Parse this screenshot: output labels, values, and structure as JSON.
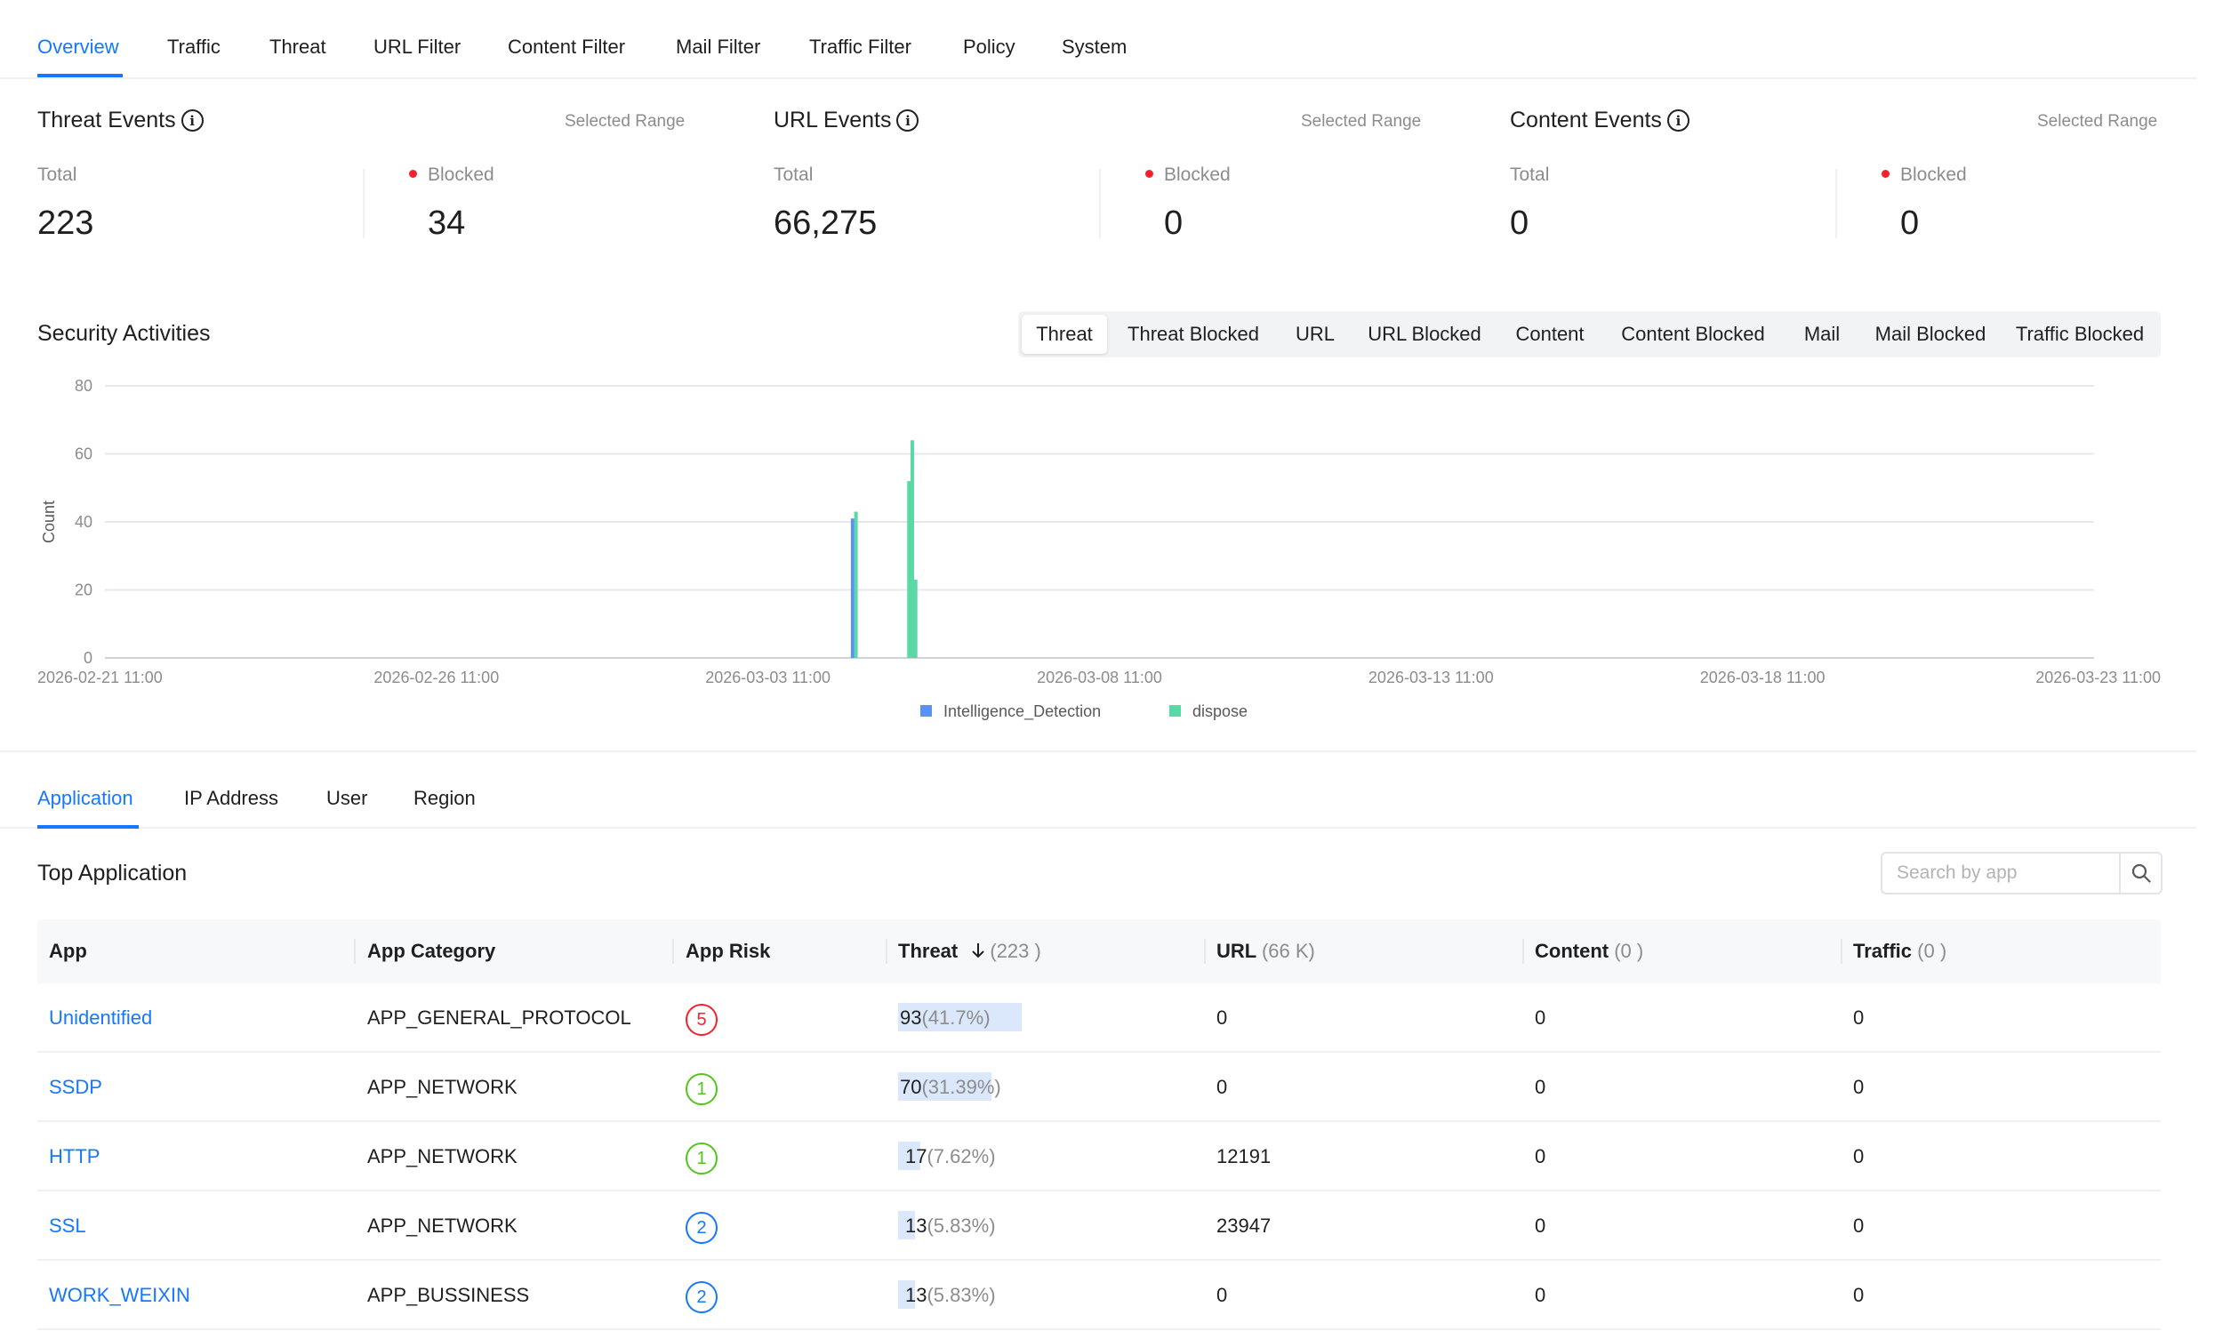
{
  "top_tabs": [
    "Overview",
    "Traffic",
    "Threat",
    "URL Filter",
    "Content Filter",
    "Mail Filter",
    "Traffic Filter",
    "Policy",
    "System"
  ],
  "cards": [
    {
      "title": "Threat Events",
      "range": "Selected Range",
      "total_label": "Total",
      "total": "223",
      "blocked_label": "Blocked",
      "blocked": "34"
    },
    {
      "title": "URL Events",
      "range": "Selected Range",
      "total_label": "Total",
      "total": "66,275",
      "blocked_label": "Blocked",
      "blocked": "0"
    },
    {
      "title": "Content Events",
      "range": "Selected Range",
      "total_label": "Total",
      "total": "0",
      "blocked_label": "Blocked",
      "blocked": "0"
    }
  ],
  "security": {
    "title": "Security Activities",
    "segments": [
      "Threat",
      "Threat Blocked",
      "URL",
      "URL Blocked",
      "Content",
      "Content Blocked",
      "Mail",
      "Mail Blocked",
      "Traffic Blocked"
    ],
    "active_segment": "Threat"
  },
  "chart_data": {
    "type": "bar",
    "ylabel": "Count",
    "ylim": [
      0,
      80
    ],
    "yticks": [
      0,
      20,
      40,
      60,
      80
    ],
    "x_ticks": [
      "2026-02-21 11:00",
      "2026-02-26 11:00",
      "2026-03-03 11:00",
      "2026-03-08 11:00",
      "2026-03-13 11:00",
      "2026-03-18 11:00",
      "2026-03-23 11:00"
    ],
    "x_range_days": [
      0,
      30
    ],
    "grid": true,
    "legend_position": "bottom",
    "series": [
      {
        "name": "Intelligence_Detection",
        "color": "#5b8ff9",
        "points": [
          {
            "day": 11.25,
            "value": 41
          }
        ]
      },
      {
        "name": "dispose",
        "color": "#5ad8a6",
        "points": [
          {
            "day": 11.3,
            "value": 43
          },
          {
            "day": 12.1,
            "value": 52
          },
          {
            "day": 12.15,
            "value": 64
          },
          {
            "day": 12.2,
            "value": 23
          }
        ]
      }
    ]
  },
  "sub_tabs": [
    "Application",
    "IP Address",
    "User",
    "Region"
  ],
  "top_app": {
    "title": "Top Application",
    "search_placeholder": "Search by app",
    "columns": {
      "app": "App",
      "category": "App Category",
      "risk": "App Risk",
      "threat": "Threat",
      "threat_total": "(223 )",
      "url": "URL",
      "url_total": "(66 K)",
      "content": "Content",
      "content_total": "(0 )",
      "traffic": "Traffic",
      "traffic_total": "(0 )"
    },
    "rows": [
      {
        "app": "Unidentified",
        "category": "APP_GENERAL_PROTOCOL",
        "risk": "5",
        "risk_color": "#f5222d",
        "threat": "93",
        "threat_pct": "(41.7%)",
        "threat_share": 0.417,
        "url": "0",
        "content": "0",
        "traffic": "0"
      },
      {
        "app": "SSDP",
        "category": "APP_NETWORK",
        "risk": "1",
        "risk_color": "#52c41a",
        "threat": "70",
        "threat_pct": "(31.39%)",
        "threat_share": 0.3139,
        "url": "0",
        "content": "0",
        "traffic": "0"
      },
      {
        "app": "HTTP",
        "category": "APP_NETWORK",
        "risk": "1",
        "risk_color": "#52c41a",
        "threat": "17",
        "threat_pct": "(7.62%)",
        "threat_share": 0.0762,
        "url": "12191",
        "content": "0",
        "traffic": "0"
      },
      {
        "app": "SSL",
        "category": "APP_NETWORK",
        "risk": "2",
        "risk_color": "#1677ff",
        "threat": "13",
        "threat_pct": "(5.83%)",
        "threat_share": 0.0583,
        "url": "23947",
        "content": "0",
        "traffic": "0"
      },
      {
        "app": "WORK_WEIXIN",
        "category": "APP_BUSSINESS",
        "risk": "2",
        "risk_color": "#1677ff",
        "threat": "13",
        "threat_pct": "(5.83%)",
        "threat_share": 0.0583,
        "url": "0",
        "content": "0",
        "traffic": "0"
      }
    ]
  }
}
